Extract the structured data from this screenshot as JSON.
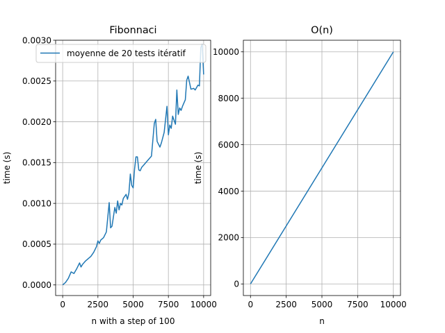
{
  "chart_data": [
    {
      "type": "line",
      "title": "Fibonnaci",
      "xlabel": "n with a step of 100",
      "ylabel": "time (s)",
      "xlim": [
        -500,
        10500
      ],
      "ylim": [
        -0.00013,
        0.003
      ],
      "xticks": [
        0,
        2500,
        5000,
        7500,
        10000
      ],
      "xtick_labels": [
        "0",
        "2500",
        "5000",
        "7500",
        "10000"
      ],
      "yticks": [
        0,
        0.0005,
        0.001,
        0.0015,
        0.002,
        0.0025,
        0.003
      ],
      "ytick_labels": [
        "0.0000",
        "0.0005",
        "0.0010",
        "0.0015",
        "0.0020",
        "0.0025",
        "0.0030"
      ],
      "grid": true,
      "legend_position": "top-right",
      "color": "#1f77b4",
      "series": [
        {
          "name": "moyenne de 20 tests itératif",
          "x": [
            0,
            200,
            400,
            600,
            800,
            1000,
            1200,
            1300,
            1400,
            1600,
            1800,
            2000,
            2200,
            2400,
            2500,
            2600,
            2700,
            2900,
            3100,
            3300,
            3400,
            3500,
            3700,
            3800,
            3900,
            4000,
            4100,
            4200,
            4300,
            4500,
            4600,
            4700,
            4800,
            4900,
            5000,
            5100,
            5200,
            5300,
            5400,
            5500,
            5600,
            5800,
            6000,
            6300,
            6500,
            6600,
            6700,
            6900,
            7000,
            7200,
            7400,
            7500,
            7600,
            7700,
            7800,
            8000,
            8100,
            8200,
            8300,
            8400,
            8500,
            8700,
            8800,
            8900,
            9100,
            9300,
            9400,
            9600,
            9700,
            9800,
            9900,
            10000
          ],
          "y": [
            0.0,
            3e-05,
            8e-05,
            0.00016,
            0.00014,
            0.0002,
            0.00027,
            0.00022,
            0.00025,
            0.00029,
            0.00032,
            0.00035,
            0.0004,
            0.00047,
            0.00054,
            0.00051,
            0.00055,
            0.00058,
            0.00065,
            0.00101,
            0.0007,
            0.00072,
            0.00095,
            0.00088,
            0.00103,
            0.00092,
            0.001,
            0.00098,
            0.00106,
            0.00111,
            0.00105,
            0.00113,
            0.00136,
            0.00122,
            0.00119,
            0.00142,
            0.00157,
            0.00157,
            0.00141,
            0.0014,
            0.00144,
            0.00148,
            0.00152,
            0.00158,
            0.00198,
            0.00203,
            0.00176,
            0.00169,
            0.00174,
            0.00187,
            0.00219,
            0.00184,
            0.00196,
            0.00192,
            0.00207,
            0.00197,
            0.00239,
            0.00209,
            0.00217,
            0.00214,
            0.00219,
            0.00227,
            0.00251,
            0.00256,
            0.0024,
            0.00241,
            0.00239,
            0.00245,
            0.00244,
            0.00291,
            0.00295,
            0.00258
          ]
        }
      ]
    },
    {
      "type": "line",
      "title": "O(n)",
      "xlabel": "n",
      "ylabel": "time (s)",
      "xlim": [
        -500,
        10500
      ],
      "ylim": [
        -500,
        10500
      ],
      "xticks": [
        0,
        2500,
        5000,
        7500,
        10000
      ],
      "xtick_labels": [
        "0",
        "2500",
        "5000",
        "7500",
        "10000"
      ],
      "yticks": [
        0,
        2000,
        4000,
        6000,
        8000,
        10000
      ],
      "ytick_labels": [
        "0",
        "2000",
        "4000",
        "6000",
        "8000",
        "10000"
      ],
      "grid": true,
      "color": "#1f77b4",
      "series": [
        {
          "x": [
            0,
            10000
          ],
          "y": [
            0,
            10000
          ]
        }
      ]
    }
  ]
}
